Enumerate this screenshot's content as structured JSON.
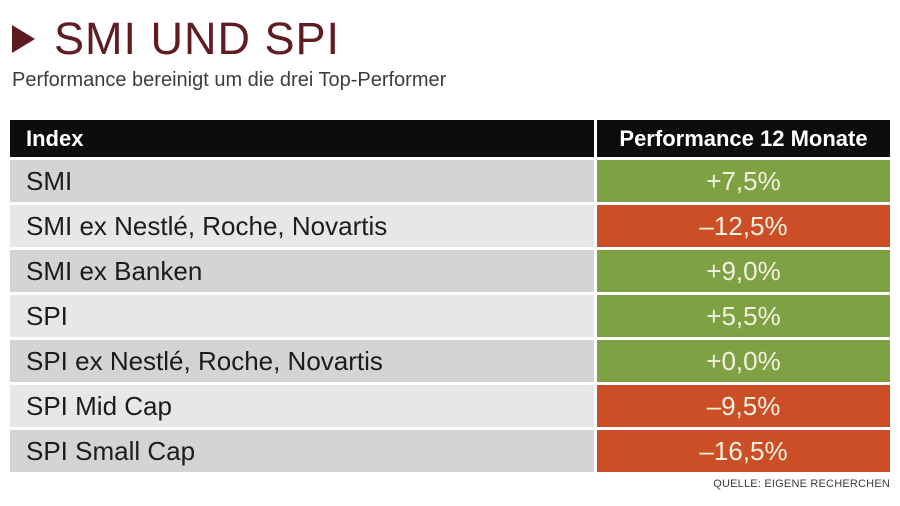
{
  "header": {
    "title": "SMI UND SPI",
    "subtitle": "Performance bereinigt um die drei Top-Performer"
  },
  "source": "QUELLE: EIGENE RECHERCHEN",
  "colors": {
    "title_maroon": "#601c23",
    "header_black": "#0c0c0c",
    "row_gray_dark": "#d2d4d6",
    "row_gray_light": "#e6e7e9",
    "positive_green": "#7da143",
    "negative_red": "#cc4e27",
    "value_text_cream": "#f4f1e0"
  },
  "chart_data": {
    "type": "table",
    "title": "SMI UND SPI",
    "subtitle": "Performance bereinigt um die drei Top-Performer",
    "columns": [
      "Index",
      "Performance 12 Monate"
    ],
    "rows": [
      {
        "index": "SMI",
        "value_label": "+7,5%",
        "value_pct": 7.5,
        "sentiment": "positive"
      },
      {
        "index": "SMI ex Nestlé, Roche, Novartis",
        "value_label": "–12,5%",
        "value_pct": -12.5,
        "sentiment": "negative"
      },
      {
        "index": "SMI ex Banken",
        "value_label": "+9,0%",
        "value_pct": 9.0,
        "sentiment": "positive"
      },
      {
        "index": "SPI",
        "value_label": "+5,5%",
        "value_pct": 5.5,
        "sentiment": "positive"
      },
      {
        "index": "SPI ex Nestlé, Roche, Novartis",
        "value_label": "+0,0%",
        "value_pct": 0.0,
        "sentiment": "positive"
      },
      {
        "index": "SPI Mid Cap",
        "value_label": "–9,5%",
        "value_pct": -9.5,
        "sentiment": "negative"
      },
      {
        "index": "SPI Small Cap",
        "value_label": "–16,5%",
        "value_pct": -16.5,
        "sentiment": "negative"
      }
    ],
    "source": "QUELLE: EIGENE RECHERCHEN"
  }
}
